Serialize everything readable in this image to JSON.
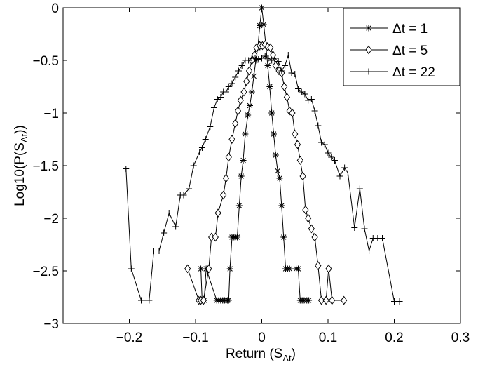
{
  "chart_data": {
    "type": "line",
    "xlabel": "Return (S",
    "xlabel_sub": "Δt",
    "xlabel_end": ")",
    "ylabel": "Log10(P(S",
    "ylabel_sub": "Δt",
    "ylabel_end": "))",
    "xlim": [
      -0.3,
      0.3
    ],
    "ylim": [
      -3,
      0
    ],
    "xticks": [
      -0.2,
      -0.1,
      0,
      0.1,
      0.2,
      0.3
    ],
    "xtick_labels": [
      "−0.2",
      "−0.1",
      "0",
      "0.1",
      "0.2",
      "0.3"
    ],
    "yticks": [
      0,
      -0.5,
      -1,
      -1.5,
      -2,
      -2.5,
      -3
    ],
    "ytick_labels": [
      "0",
      "−0.5",
      "−1",
      "−1.5",
      "−2",
      "−2.5",
      "−3"
    ],
    "grid": false,
    "legend_position": "top-right",
    "series": [
      {
        "name": "Δt = 1",
        "marker": "asterisk",
        "points": [
          [
            -0.092,
            -2.48
          ],
          [
            -0.09,
            -2.78
          ],
          [
            -0.087,
            -2.78
          ],
          [
            -0.084,
            -2.48
          ],
          [
            -0.068,
            -2.78
          ],
          [
            -0.065,
            -2.78
          ],
          [
            -0.062,
            -2.78
          ],
          [
            -0.059,
            -2.78
          ],
          [
            -0.056,
            -2.78
          ],
          [
            -0.052,
            -2.78
          ],
          [
            -0.05,
            -2.78
          ],
          [
            -0.048,
            -2.48
          ],
          [
            -0.045,
            -2.18
          ],
          [
            -0.042,
            -2.18
          ],
          [
            -0.04,
            -2.18
          ],
          [
            -0.037,
            -2.18
          ],
          [
            -0.034,
            -1.88
          ],
          [
            -0.031,
            -1.6
          ],
          [
            -0.028,
            -1.45
          ],
          [
            -0.025,
            -1.2
          ],
          [
            -0.021,
            -1.02
          ],
          [
            -0.018,
            -0.93
          ],
          [
            -0.015,
            -0.8
          ],
          [
            -0.012,
            -0.65
          ],
          [
            -0.009,
            -0.5
          ],
          [
            -0.006,
            -0.38
          ],
          [
            -0.003,
            -0.17
          ],
          [
            0.0,
            0.0
          ],
          [
            0.003,
            -0.16
          ],
          [
            0.006,
            -0.35
          ],
          [
            0.009,
            -0.55
          ],
          [
            0.012,
            -0.75
          ],
          [
            0.015,
            -1.0
          ],
          [
            0.018,
            -1.2
          ],
          [
            0.021,
            -1.4
          ],
          [
            0.024,
            -1.55
          ],
          [
            0.027,
            -1.62
          ],
          [
            0.03,
            -1.88
          ],
          [
            0.033,
            -2.18
          ],
          [
            0.036,
            -2.48
          ],
          [
            0.039,
            -2.48
          ],
          [
            0.042,
            -2.48
          ],
          [
            0.052,
            -2.48
          ],
          [
            0.055,
            -2.48
          ],
          [
            0.058,
            -2.78
          ],
          [
            0.061,
            -2.78
          ],
          [
            0.064,
            -2.78
          ],
          [
            0.068,
            -2.78
          ],
          [
            0.071,
            -2.78
          ]
        ]
      },
      {
        "name": "Δt = 5",
        "marker": "diamond",
        "points": [
          [
            -0.112,
            -2.48
          ],
          [
            -0.095,
            -2.78
          ],
          [
            -0.092,
            -2.78
          ],
          [
            -0.088,
            -2.78
          ],
          [
            -0.08,
            -2.48
          ],
          [
            -0.076,
            -2.18
          ],
          [
            -0.07,
            -2.18
          ],
          [
            -0.066,
            -1.95
          ],
          [
            -0.058,
            -1.78
          ],
          [
            -0.054,
            -1.62
          ],
          [
            -0.05,
            -1.42
          ],
          [
            -0.045,
            -1.25
          ],
          [
            -0.04,
            -1.1
          ],
          [
            -0.036,
            -0.98
          ],
          [
            -0.032,
            -0.88
          ],
          [
            -0.027,
            -0.8
          ],
          [
            -0.023,
            -0.7
          ],
          [
            -0.019,
            -0.6
          ],
          [
            -0.015,
            -0.5
          ],
          [
            -0.011,
            -0.45
          ],
          [
            -0.008,
            -0.38
          ],
          [
            -0.003,
            -0.36
          ],
          [
            0.001,
            -0.36
          ],
          [
            0.005,
            -0.35
          ],
          [
            0.009,
            -0.37
          ],
          [
            0.013,
            -0.38
          ],
          [
            0.017,
            -0.45
          ],
          [
            0.021,
            -0.55
          ],
          [
            0.026,
            -0.6
          ],
          [
            0.03,
            -0.62
          ],
          [
            0.034,
            -0.75
          ],
          [
            0.038,
            -0.85
          ],
          [
            0.042,
            -0.98
          ],
          [
            0.046,
            -1.0
          ],
          [
            0.05,
            -1.2
          ],
          [
            0.054,
            -1.3
          ],
          [
            0.058,
            -1.45
          ],
          [
            0.062,
            -1.6
          ],
          [
            0.066,
            -1.92
          ],
          [
            0.07,
            -2.0
          ],
          [
            0.075,
            -2.1
          ],
          [
            0.08,
            -2.18
          ],
          [
            0.085,
            -2.45
          ],
          [
            0.09,
            -2.78
          ],
          [
            0.097,
            -2.78
          ],
          [
            0.101,
            -2.48
          ],
          [
            0.106,
            -2.78
          ],
          [
            0.124,
            -2.78
          ]
        ]
      },
      {
        "name": "Δt = 22",
        "marker": "plus",
        "points": [
          [
            -0.205,
            -1.53
          ],
          [
            -0.197,
            -2.48
          ],
          [
            -0.182,
            -2.78
          ],
          [
            -0.17,
            -2.78
          ],
          [
            -0.163,
            -2.31
          ],
          [
            -0.155,
            -2.31
          ],
          [
            -0.148,
            -2.14
          ],
          [
            -0.14,
            -1.95
          ],
          [
            -0.13,
            -2.08
          ],
          [
            -0.123,
            -1.78
          ],
          [
            -0.118,
            -1.78
          ],
          [
            -0.11,
            -1.72
          ],
          [
            -0.103,
            -1.5
          ],
          [
            -0.094,
            -1.37
          ],
          [
            -0.09,
            -1.33
          ],
          [
            -0.085,
            -1.25
          ],
          [
            -0.078,
            -1.13
          ],
          [
            -0.072,
            -0.95
          ],
          [
            -0.067,
            -0.87
          ],
          [
            -0.062,
            -0.85
          ],
          [
            -0.058,
            -0.8
          ],
          [
            -0.054,
            -0.8
          ],
          [
            -0.05,
            -0.75
          ],
          [
            -0.045,
            -0.72
          ],
          [
            -0.04,
            -0.66
          ],
          [
            -0.035,
            -0.6
          ],
          [
            -0.03,
            -0.55
          ],
          [
            -0.025,
            -0.5
          ],
          [
            -0.02,
            -0.5
          ],
          [
            -0.015,
            -0.48
          ],
          [
            -0.01,
            -0.48
          ],
          [
            -0.005,
            -0.49
          ],
          [
            0.0,
            -0.48
          ],
          [
            0.005,
            -0.46
          ],
          [
            0.01,
            -0.48
          ],
          [
            0.015,
            -0.5
          ],
          [
            0.02,
            -0.48
          ],
          [
            0.025,
            -0.51
          ],
          [
            0.03,
            -0.6
          ],
          [
            0.035,
            -0.55
          ],
          [
            0.04,
            -0.45
          ],
          [
            0.045,
            -0.62
          ],
          [
            0.05,
            -0.63
          ],
          [
            0.055,
            -0.77
          ],
          [
            0.06,
            -0.8
          ],
          [
            0.065,
            -0.82
          ],
          [
            0.07,
            -0.88
          ],
          [
            0.075,
            -0.87
          ],
          [
            0.08,
            -0.98
          ],
          [
            0.085,
            -1.12
          ],
          [
            0.09,
            -1.28
          ],
          [
            0.095,
            -1.3
          ],
          [
            0.1,
            -1.38
          ],
          [
            0.105,
            -1.42
          ],
          [
            0.11,
            -1.45
          ],
          [
            0.118,
            -1.6
          ],
          [
            0.125,
            -1.52
          ],
          [
            0.13,
            -1.57
          ],
          [
            0.14,
            -2.09
          ],
          [
            0.148,
            -1.72
          ],
          [
            0.155,
            -2.1
          ],
          [
            0.162,
            -2.31
          ],
          [
            0.168,
            -2.19
          ],
          [
            0.175,
            -2.19
          ],
          [
            0.182,
            -2.19
          ],
          [
            0.2,
            -2.79
          ],
          [
            0.208,
            -2.79
          ]
        ]
      }
    ]
  }
}
